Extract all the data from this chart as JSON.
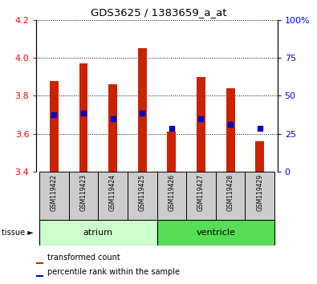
{
  "title": "GDS3625 / 1383659_a_at",
  "samples": [
    "GSM119422",
    "GSM119423",
    "GSM119424",
    "GSM119425",
    "GSM119426",
    "GSM119427",
    "GSM119428",
    "GSM119429"
  ],
  "transformed_counts": [
    3.88,
    3.97,
    3.86,
    4.05,
    3.61,
    3.9,
    3.84,
    3.56
  ],
  "percentile_ranks_left": [
    3.7,
    3.71,
    3.68,
    3.71,
    3.63,
    3.68,
    3.65,
    3.63
  ],
  "ylim_left": [
    3.4,
    4.2
  ],
  "ylim_right": [
    0,
    100
  ],
  "yticks_left": [
    3.4,
    3.6,
    3.8,
    4.0,
    4.2
  ],
  "yticks_right": [
    0,
    25,
    50,
    75,
    100
  ],
  "bar_color": "#cc2200",
  "marker_color": "#0000cc",
  "atrium_color": "#ccffcc",
  "ventricle_color": "#55dd55",
  "baseline": 3.4,
  "sample_bg": "#cccccc",
  "bar_width": 0.3
}
